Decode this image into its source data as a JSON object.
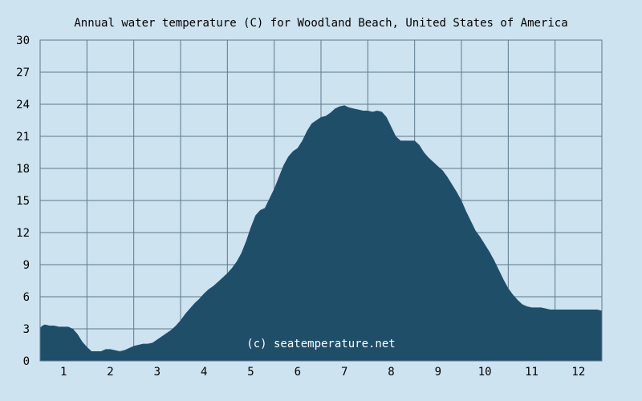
{
  "chart_data": {
    "type": "area",
    "title": "Annual water temperature (C) for Woodland Beach, United States of America",
    "xlabel": "",
    "ylabel": "",
    "x_ticks": [
      "1",
      "2",
      "3",
      "4",
      "5",
      "6",
      "7",
      "8",
      "9",
      "10",
      "11",
      "12"
    ],
    "y_ticks": [
      "0",
      "3",
      "6",
      "9",
      "12",
      "15",
      "18",
      "21",
      "24",
      "27",
      "30"
    ],
    "ylim": [
      0,
      30
    ],
    "xlim": [
      0.5,
      12.5
    ],
    "grid": true,
    "series": [
      {
        "x": [
          0.5,
          0.55,
          0.6,
          0.7,
          0.8,
          0.9,
          1.0,
          1.1,
          1.2,
          1.3,
          1.4,
          1.5,
          1.6,
          1.7,
          1.8,
          1.9,
          2.0,
          2.1,
          2.2,
          2.3,
          2.4,
          2.5,
          2.6,
          2.7,
          2.8,
          2.9,
          3.0,
          3.1,
          3.2,
          3.3,
          3.4,
          3.5,
          3.6,
          3.7,
          3.8,
          3.9,
          4.0,
          4.1,
          4.2,
          4.3,
          4.4,
          4.5,
          4.6,
          4.7,
          4.8,
          4.9,
          5.0,
          5.1,
          5.2,
          5.3,
          5.4,
          5.5,
          5.6,
          5.7,
          5.8,
          5.9,
          6.0,
          6.1,
          6.2,
          6.3,
          6.4,
          6.5,
          6.6,
          6.7,
          6.8,
          6.9,
          7.0,
          7.1,
          7.2,
          7.3,
          7.4,
          7.5,
          7.6,
          7.7,
          7.8,
          7.9,
          8.0,
          8.1,
          8.2,
          8.3,
          8.4,
          8.5,
          8.6,
          8.7,
          8.8,
          8.9,
          9.0,
          9.1,
          9.2,
          9.3,
          9.4,
          9.5,
          9.6,
          9.7,
          9.8,
          9.9,
          10.0,
          10.1,
          10.2,
          10.3,
          10.4,
          10.5,
          10.6,
          10.7,
          10.8,
          10.9,
          11.0,
          11.1,
          11.2,
          11.3,
          11.4,
          11.5,
          11.6,
          11.7,
          11.8,
          11.9,
          12.0,
          12.1,
          12.2,
          12.3,
          12.4,
          12.5
        ],
        "values": [
          3.1,
          3.3,
          3.4,
          3.3,
          3.3,
          3.2,
          3.2,
          3.2,
          3.0,
          2.5,
          1.8,
          1.3,
          0.9,
          0.9,
          0.9,
          1.1,
          1.1,
          1.0,
          0.9,
          1.0,
          1.2,
          1.4,
          1.5,
          1.6,
          1.6,
          1.7,
          2.0,
          2.3,
          2.6,
          2.9,
          3.3,
          3.8,
          4.4,
          4.9,
          5.4,
          5.8,
          6.3,
          6.7,
          7.0,
          7.4,
          7.8,
          8.2,
          8.7,
          9.3,
          10.1,
          11.2,
          12.5,
          13.6,
          14.1,
          14.3,
          15.2,
          16.1,
          17.2,
          18.3,
          19.1,
          19.6,
          19.9,
          20.6,
          21.5,
          22.2,
          22.5,
          22.8,
          22.9,
          23.2,
          23.6,
          23.8,
          23.9,
          23.7,
          23.6,
          23.5,
          23.4,
          23.4,
          23.3,
          23.4,
          23.3,
          22.8,
          21.9,
          21.0,
          20.6,
          20.6,
          20.6,
          20.6,
          20.2,
          19.5,
          19.0,
          18.6,
          18.2,
          17.8,
          17.2,
          16.5,
          15.8,
          15.0,
          14.0,
          13.1,
          12.2,
          11.6,
          10.9,
          10.2,
          9.4,
          8.5,
          7.6,
          6.8,
          6.2,
          5.7,
          5.3,
          5.1,
          5.0,
          5.0,
          5.0,
          4.9,
          4.8,
          4.8,
          4.8,
          4.8,
          4.8,
          4.8,
          4.8,
          4.8,
          4.8,
          4.8,
          4.8,
          4.7
        ]
      }
    ],
    "annotation": "(c) seatemperature.net",
    "colors": {
      "background": "#cde3ef",
      "fill": "#1f4e69",
      "grid": "#5d7a8c",
      "text": "#000000",
      "annotation_text": "#ffffff"
    }
  }
}
